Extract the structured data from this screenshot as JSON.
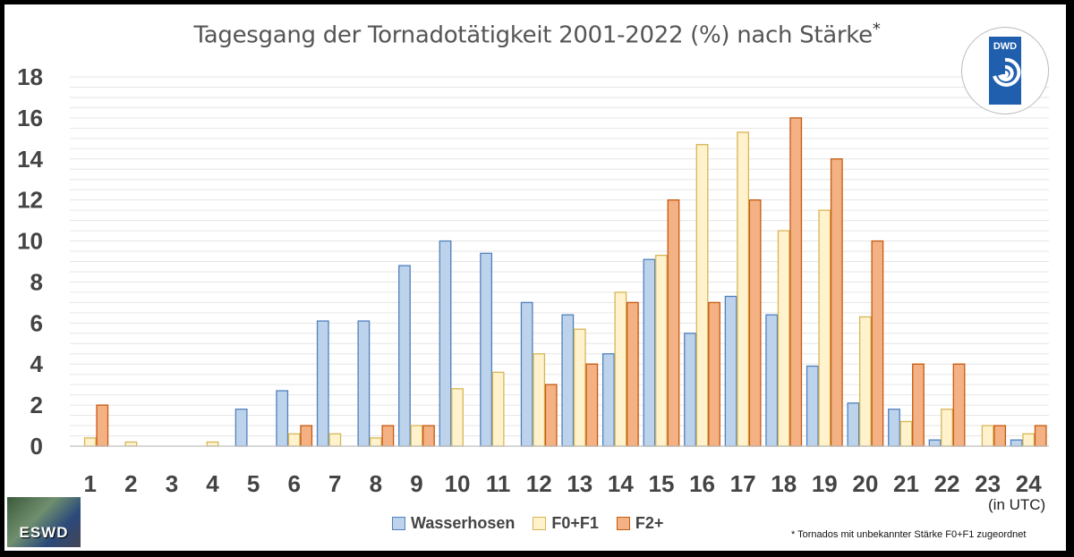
{
  "title": "Tagesgang der Tornadotätigkeit 2001-2022 (%) nach Stärke",
  "title_mark": "*",
  "unit_label": "(in UTC)",
  "footnote": "* Tornados mit unbekannter Stärke F0+F1 zugeordnet",
  "logo_dwd": "DWD",
  "logo_eswd": "ESWD",
  "chart_data": {
    "type": "bar",
    "categories": [
      "1",
      "2",
      "3",
      "4",
      "5",
      "6",
      "7",
      "8",
      "9",
      "10",
      "11",
      "12",
      "13",
      "14",
      "15",
      "16",
      "17",
      "18",
      "19",
      "20",
      "21",
      "22",
      "23",
      "24"
    ],
    "ylim": [
      0,
      18
    ],
    "yticks": [
      0,
      2,
      4,
      6,
      8,
      10,
      12,
      14,
      16,
      18
    ],
    "grid": true,
    "legend_position": "bottom",
    "series": [
      {
        "name": "Wasserhosen",
        "fill": "#bdd3ec",
        "stroke": "#4f81bd",
        "values": [
          0,
          0,
          0,
          0,
          1.8,
          2.7,
          6.1,
          6.1,
          8.8,
          10.0,
          9.4,
          7.0,
          6.4,
          4.5,
          9.1,
          5.5,
          7.3,
          6.4,
          3.9,
          2.1,
          1.8,
          0.3,
          0,
          0.3
        ]
      },
      {
        "name": "F0+F1",
        "fill": "#fff2cc",
        "stroke": "#d6b656",
        "values": [
          0.4,
          0.2,
          0,
          0.2,
          0,
          0.6,
          0.6,
          0.4,
          1.0,
          2.8,
          3.6,
          4.5,
          5.7,
          7.5,
          9.3,
          14.7,
          15.3,
          10.5,
          11.5,
          6.3,
          1.2,
          1.8,
          1.0,
          0.6
        ]
      },
      {
        "name": "F2+",
        "fill": "#f4b183",
        "stroke": "#c55a11",
        "values": [
          2,
          0,
          0,
          0,
          0,
          1,
          0,
          1,
          1,
          0,
          0,
          3,
          4,
          7,
          12,
          7,
          12,
          16,
          14,
          10,
          4,
          4,
          1,
          1
        ]
      }
    ]
  }
}
